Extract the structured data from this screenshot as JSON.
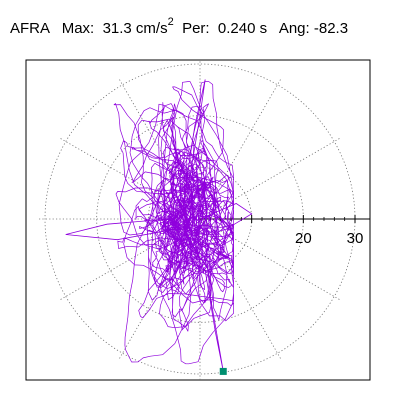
{
  "header": {
    "station": "AFRA",
    "max_label": "Max:",
    "max_value": "31.3 cm/s",
    "max_unit_exp": "2",
    "per_label": "Per:",
    "per_value": "0.240 s",
    "ang_label": "Ang:",
    "ang_value": "-82.3"
  },
  "colors": {
    "trace": "#8f00dd",
    "marker": "#008f70",
    "grid": "#707070",
    "frame": "#000000"
  },
  "chart_data": {
    "type": "polar-particle-motion",
    "radial_ticks": [
      10,
      20,
      30
    ],
    "radial_tick_labels": [
      "20",
      "30"
    ],
    "radial_max": 30,
    "rings": [
      10,
      20,
      30
    ],
    "spokes_every_deg": 30,
    "max_amplitude": 31.3,
    "period_s": 0.24,
    "peak_angle_deg": -82.3,
    "trace_extent": {
      "x": [
        -26,
        10
      ],
      "y": [
        -29.5,
        28
      ]
    },
    "peak_marker": {
      "x": 4.5,
      "y": -29.5
    }
  }
}
